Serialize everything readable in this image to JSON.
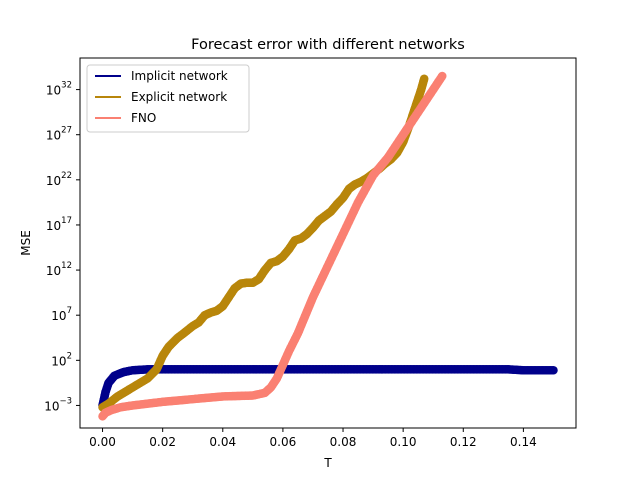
{
  "chart_data": {
    "type": "scatter",
    "title": "Forecast error with different networks",
    "xlabel": "T",
    "ylabel": "MSE",
    "xlim": [
      -0.0075,
      0.1575
    ],
    "ylim_log10": [
      -5.5,
      35.5
    ],
    "yscale": "log",
    "xticks": [
      0.0,
      0.02,
      0.04,
      0.06,
      0.08,
      0.1,
      0.12,
      0.14
    ],
    "xtick_labels": [
      "0.00",
      "0.02",
      "0.04",
      "0.06",
      "0.08",
      "0.10",
      "0.12",
      "0.14"
    ],
    "yticks_log10": [
      -3,
      2,
      7,
      12,
      17,
      22,
      27,
      32
    ],
    "ytick_bases": [
      "10",
      "10",
      "10",
      "10",
      "10",
      "10",
      "10",
      "10"
    ],
    "ytick_exponents": [
      "−3",
      "2",
      "7",
      "12",
      "17",
      "22",
      "27",
      "32"
    ],
    "grid": false,
    "legend_position": "upper-left",
    "series": [
      {
        "name": "Implicit network",
        "color": "#00008b",
        "x": [
          0.0,
          0.001,
          0.002,
          0.004,
          0.007,
          0.01,
          0.015,
          0.02,
          0.04,
          0.06,
          0.08,
          0.1,
          0.12,
          0.135,
          0.14,
          0.145,
          0.15
        ],
        "log10_mse": [
          -3.0,
          -1.5,
          -0.5,
          0.3,
          0.7,
          0.9,
          1.0,
          1.0,
          1.0,
          1.0,
          1.0,
          1.0,
          1.0,
          1.0,
          0.9,
          0.9,
          0.9
        ]
      },
      {
        "name": "Explicit network",
        "color": "#b8860b",
        "x": [
          0.0,
          0.002,
          0.005,
          0.01,
          0.015,
          0.018,
          0.02,
          0.022,
          0.025,
          0.027,
          0.03,
          0.032,
          0.034,
          0.036,
          0.038,
          0.04,
          0.042,
          0.044,
          0.046,
          0.048,
          0.05,
          0.052,
          0.054,
          0.056,
          0.058,
          0.06,
          0.062,
          0.064,
          0.066,
          0.068,
          0.07,
          0.072,
          0.074,
          0.076,
          0.078,
          0.08,
          0.082,
          0.084,
          0.086,
          0.088,
          0.09,
          0.092,
          0.094,
          0.096,
          0.098,
          0.1,
          0.102,
          0.104,
          0.106,
          0.107
        ],
        "log10_mse": [
          -3.2,
          -2.8,
          -2.0,
          -1.0,
          0.0,
          1.0,
          2.5,
          3.5,
          4.5,
          5.0,
          5.8,
          6.2,
          7.0,
          7.3,
          7.5,
          8.0,
          9.0,
          10.0,
          10.5,
          10.6,
          10.6,
          11.0,
          12.0,
          12.8,
          13.0,
          13.5,
          14.3,
          15.3,
          15.5,
          16.0,
          16.7,
          17.5,
          18.0,
          18.5,
          19.3,
          20.0,
          21.0,
          21.5,
          21.8,
          22.2,
          22.7,
          23.2,
          23.8,
          24.3,
          25.0,
          26.2,
          28.0,
          30.0,
          32.0,
          33.2
        ]
      },
      {
        "name": "FNO",
        "color": "#fa8072",
        "x": [
          0.0,
          0.001,
          0.003,
          0.006,
          0.01,
          0.015,
          0.02,
          0.03,
          0.04,
          0.05,
          0.054,
          0.056,
          0.058,
          0.06,
          0.062,
          0.065,
          0.07,
          0.075,
          0.08,
          0.085,
          0.09,
          0.095,
          0.1,
          0.105,
          0.11,
          0.113
        ],
        "log10_mse": [
          -4.2,
          -3.8,
          -3.5,
          -3.2,
          -3.0,
          -2.8,
          -2.6,
          -2.3,
          -2.0,
          -1.9,
          -1.6,
          -1.0,
          0.0,
          1.5,
          3.0,
          5.0,
          9.0,
          12.5,
          16.0,
          19.5,
          22.5,
          24.5,
          27.0,
          29.5,
          32.0,
          33.5
        ]
      }
    ]
  }
}
